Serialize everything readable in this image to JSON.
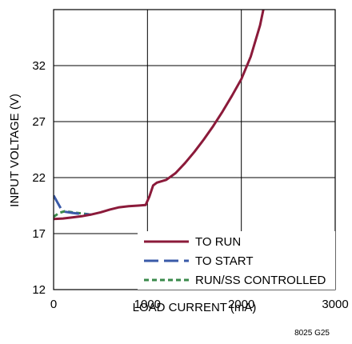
{
  "chart_data": {
    "type": "line",
    "xlabel": "LOAD CURRENT (mA)",
    "ylabel": "INPUT VOLTAGE (V)",
    "xlim": [
      0,
      3000
    ],
    "ylim": [
      12,
      37
    ],
    "xticks": [
      0,
      1000,
      2000,
      3000
    ],
    "yticks": [
      12,
      17,
      22,
      27,
      32
    ],
    "grid": true,
    "legend_position": "bottom-right",
    "figure_code": "8025 G25",
    "series": [
      {
        "name": "TO RUN",
        "color": "#8b1a3a",
        "dash": "solid",
        "points": [
          [
            0,
            18.3
          ],
          [
            100,
            18.35
          ],
          [
            200,
            18.45
          ],
          [
            300,
            18.55
          ],
          [
            400,
            18.7
          ],
          [
            500,
            18.9
          ],
          [
            600,
            19.15
          ],
          [
            700,
            19.35
          ],
          [
            800,
            19.45
          ],
          [
            900,
            19.5
          ],
          [
            980,
            19.55
          ],
          [
            1020,
            20.3
          ],
          [
            1060,
            21.3
          ],
          [
            1100,
            21.55
          ],
          [
            1200,
            21.8
          ],
          [
            1300,
            22.4
          ],
          [
            1400,
            23.3
          ],
          [
            1500,
            24.3
          ],
          [
            1600,
            25.4
          ],
          [
            1700,
            26.6
          ],
          [
            1800,
            27.9
          ],
          [
            1900,
            29.3
          ],
          [
            2000,
            30.8
          ],
          [
            2100,
            32.8
          ],
          [
            2200,
            35.6
          ],
          [
            2235,
            37
          ]
        ]
      },
      {
        "name": "TO START",
        "color": "#3a5aa8",
        "dash": "long-dash",
        "points": [
          [
            0,
            20.4
          ],
          [
            40,
            19.8
          ],
          [
            80,
            19.2
          ],
          [
            120,
            18.95
          ],
          [
            200,
            18.85
          ],
          [
            300,
            18.75
          ],
          [
            400,
            18.7
          ]
        ]
      },
      {
        "name": "RUN/SS CONTROLLED",
        "color": "#3a8a4a",
        "dash": "short-dash",
        "points": [
          [
            0,
            18.5
          ],
          [
            60,
            18.85
          ],
          [
            120,
            19.0
          ],
          [
            200,
            18.9
          ],
          [
            300,
            18.8
          ],
          [
            400,
            18.7
          ]
        ]
      }
    ]
  }
}
